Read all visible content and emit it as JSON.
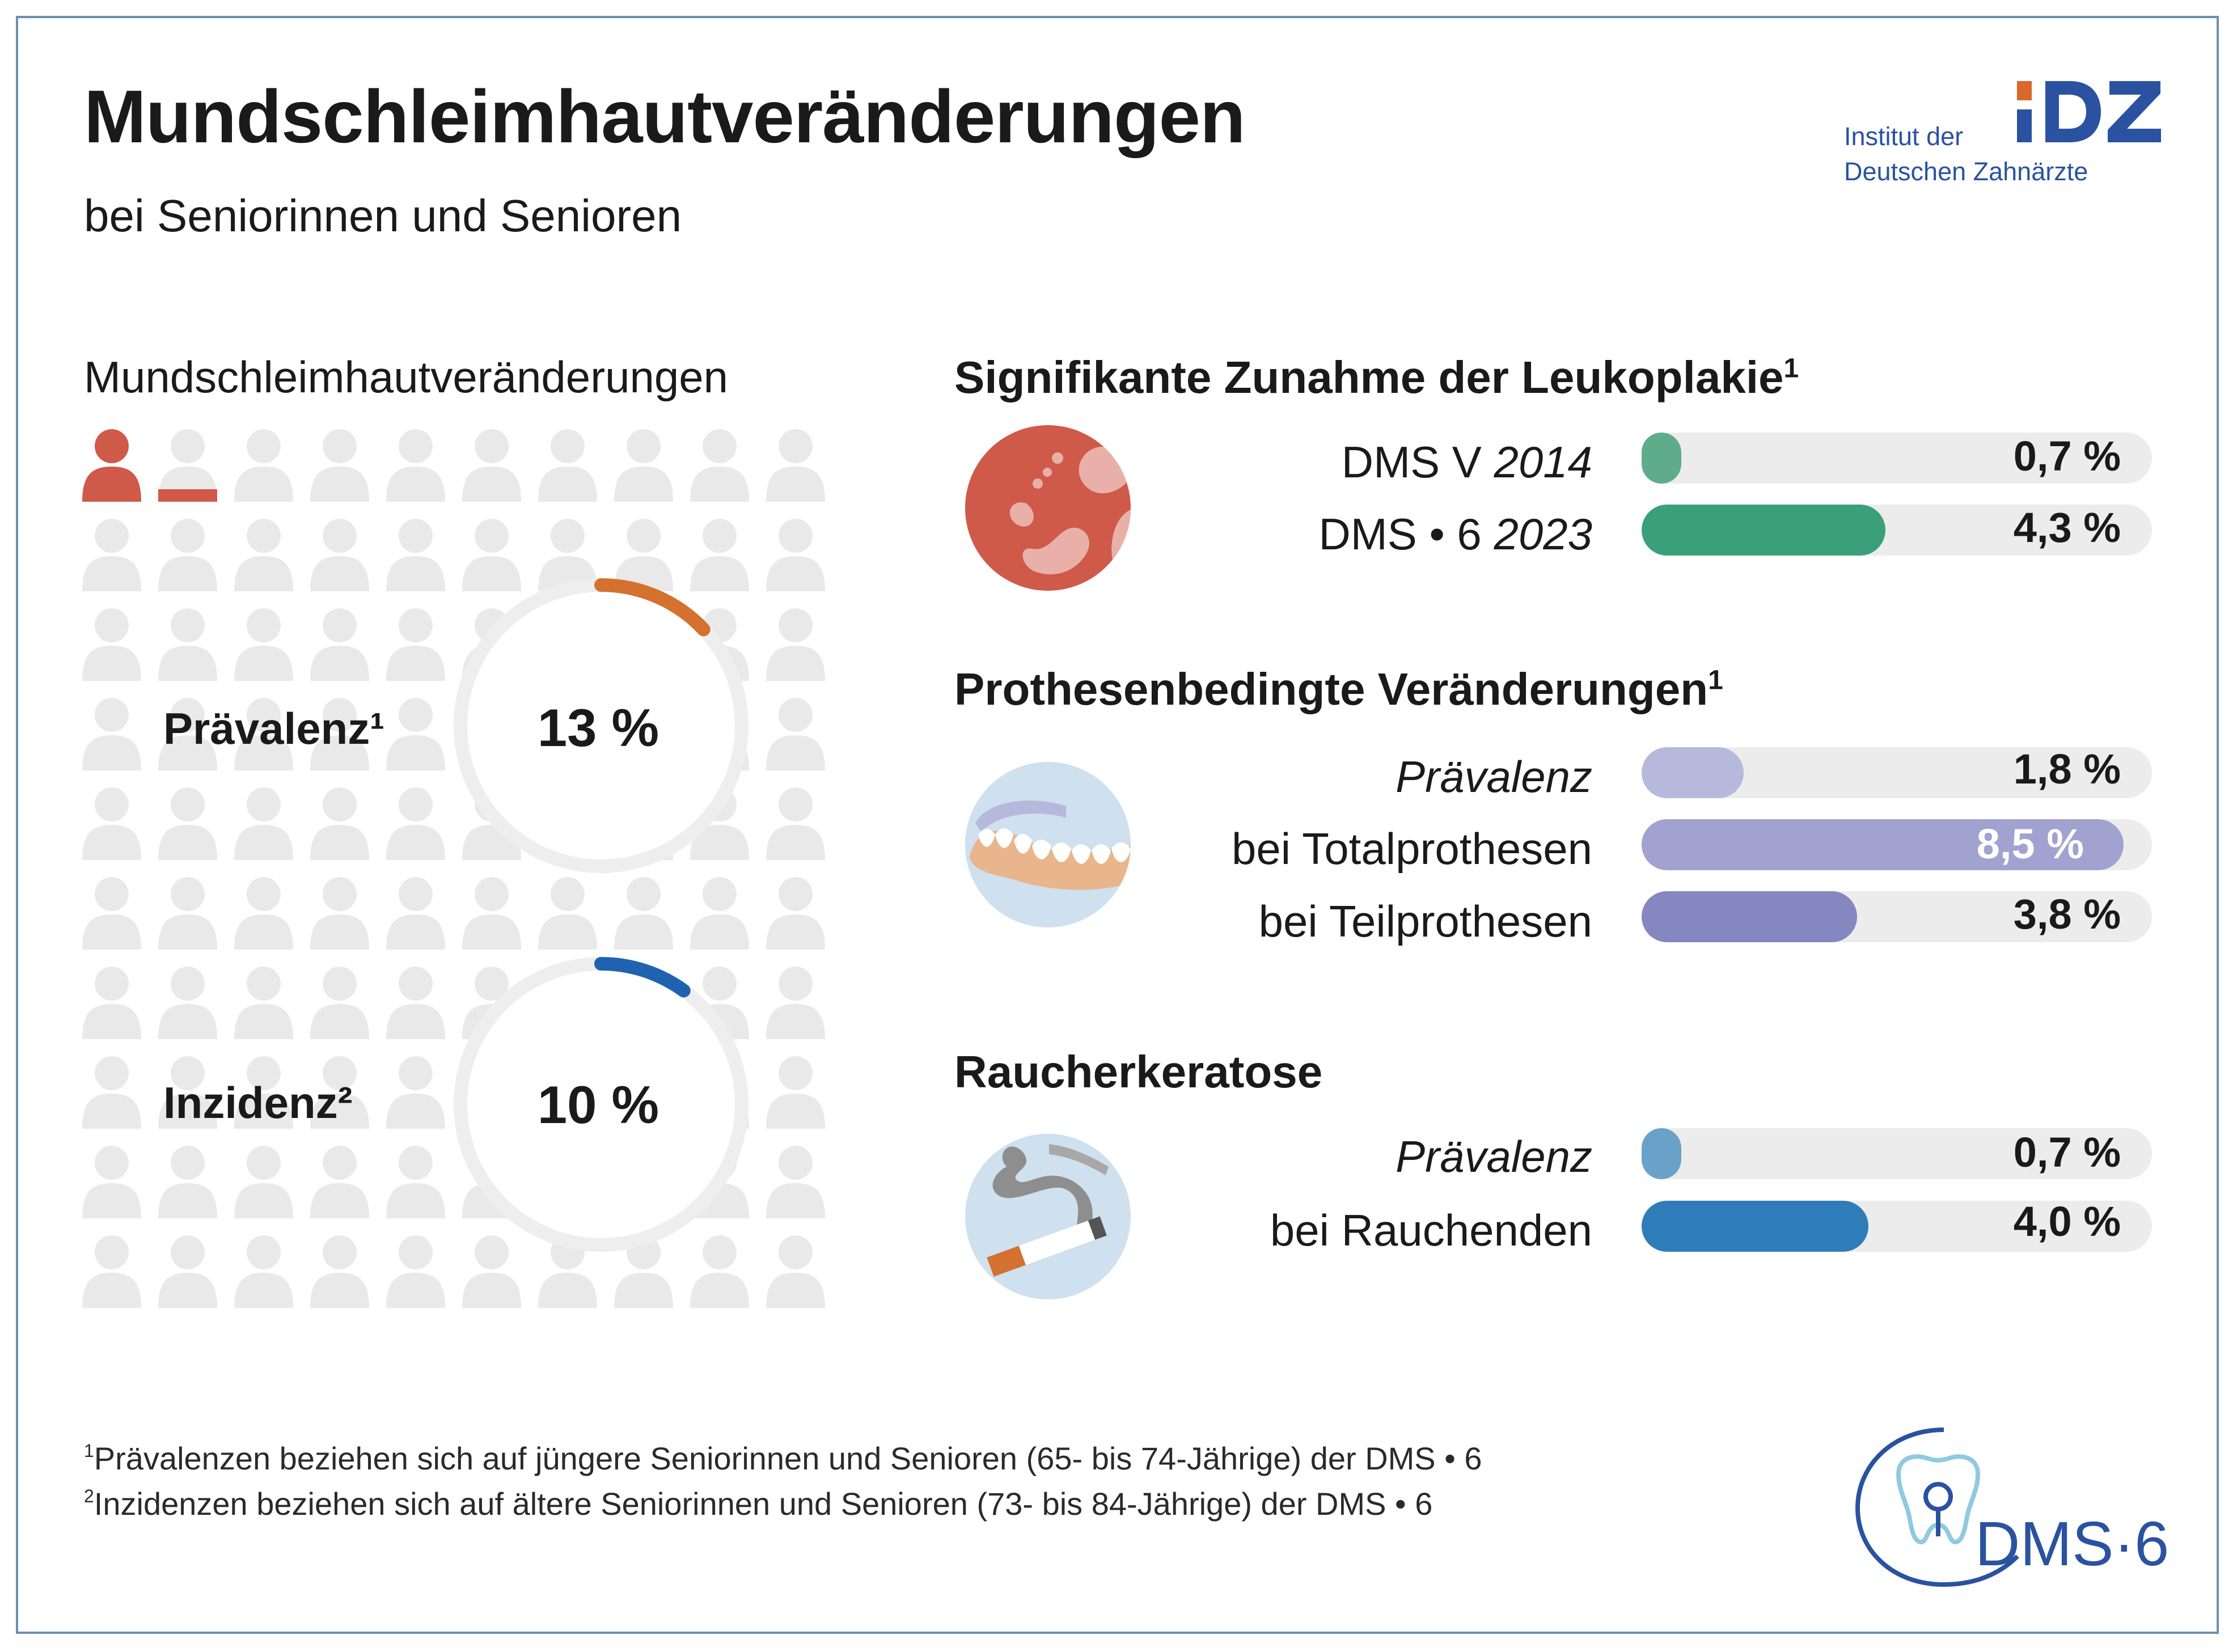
{
  "header": {
    "title": "Mundschleimhautveränderungen",
    "subtitle": "bei Seniorinnen und Senioren"
  },
  "logo_idz": {
    "line1": "Institut der",
    "line2": "Deutschen Zahnärzte",
    "mark": "IDZ"
  },
  "left_panel": {
    "heading": "Mundschleimhautveränderungen",
    "prevalence": {
      "label": "Prävalenz¹",
      "value_text": "13 %",
      "value": 13,
      "color": "#d4712e"
    },
    "incidence": {
      "label": "Inzidenz²",
      "value_text": "10 %",
      "value": 10,
      "color": "#1f63b0"
    }
  },
  "chart_data": [
    {
      "type": "bar",
      "title": "Signifikante Zunahme der Leukoplakie",
      "title_sup": "1",
      "unit": "%",
      "ylim": [
        0,
        9
      ],
      "rows": [
        {
          "label": "DMS V",
          "label_italic": "2014",
          "value": 0.7,
          "value_text": "0,7 %",
          "color": "#5fac8c",
          "value_inside": false
        },
        {
          "label": "DMS • 6",
          "label_italic": "2023",
          "value": 4.3,
          "value_text": "4,3 %",
          "color": "#3aa07b",
          "value_inside": false
        }
      ]
    },
    {
      "type": "bar",
      "title": "Prothesenbedingte Veränderungen",
      "title_sup": "1",
      "unit": "%",
      "ylim": [
        0,
        9
      ],
      "rows": [
        {
          "label": "",
          "label_italic": "Prävalenz",
          "value": 1.8,
          "value_text": "1,8 %",
          "color": "#b7b9dc",
          "value_inside": false
        },
        {
          "label": "bei Totalprothesen",
          "label_italic": "",
          "value": 8.5,
          "value_text": "8,5 %",
          "color": "#a1a2d0",
          "value_inside": true
        },
        {
          "label": "bei Teilprothesen",
          "label_italic": "",
          "value": 3.8,
          "value_text": "3,8 %",
          "color": "#8487c0",
          "value_inside": false
        }
      ]
    },
    {
      "type": "bar",
      "title": "Raucherkeratose",
      "title_sup": "",
      "unit": "%",
      "ylim": [
        0,
        9
      ],
      "rows": [
        {
          "label": "",
          "label_italic": "Prävalenz",
          "value": 0.7,
          "value_text": "0,7 %",
          "color": "#6aa1c9",
          "value_inside": false
        },
        {
          "label": "bei Rauchenden",
          "label_italic": "",
          "value": 4.0,
          "value_text": "4,0 %",
          "color": "#2e7db8",
          "value_inside": false
        }
      ]
    }
  ],
  "footnotes": [
    {
      "marker": "1",
      "text": "Prävalenzen beziehen sich auf jüngere Seniorinnen und Senioren (65- bis 74-Jährige) der DMS • 6"
    },
    {
      "marker": "2",
      "text": "Inzidenzen beziehen sich auf ältere Seniorinnen und Senioren (73- bis 84-Jährige) der DMS • 6"
    }
  ],
  "logo_dms": {
    "text": "DMS·6"
  },
  "colors": {
    "ring_track": "#eeeeee",
    "people_gray": "#e9e9e9",
    "people_red": "#cf5a4a",
    "logo_blue": "#2a52a0",
    "logo_orange": "#d9682a"
  }
}
